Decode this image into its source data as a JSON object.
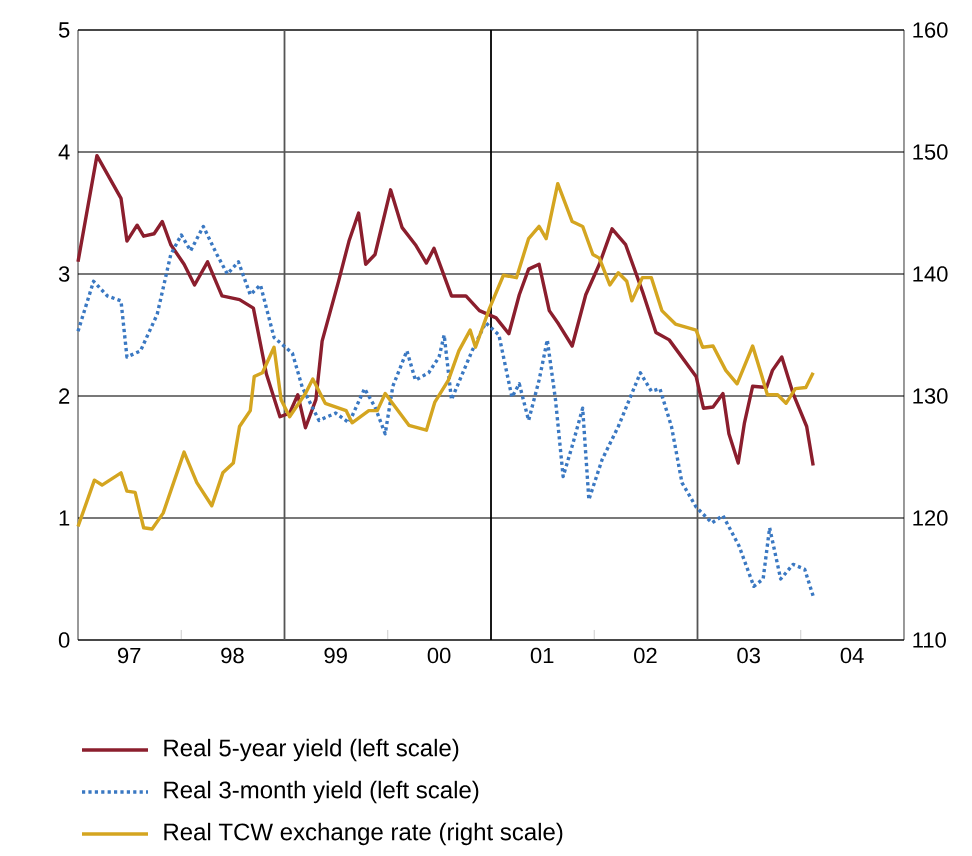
{
  "chart_data": {
    "type": "line",
    "xlim": [
      "1997-01-01",
      "2005-01-01"
    ],
    "ylim": [
      0,
      5
    ],
    "yticks": [
      0,
      1,
      2,
      3,
      4,
      5
    ],
    "y2lim": [
      110,
      160
    ],
    "y2ticks": [
      110,
      120,
      130,
      140,
      150,
      160
    ],
    "xticks": [
      {
        "value": "1997-07-01",
        "label": "97"
      },
      {
        "value": "1998-07-01",
        "label": "98"
      },
      {
        "value": "1999-07-01",
        "label": "99"
      },
      {
        "value": "2000-07-01",
        "label": "00"
      },
      {
        "value": "2001-07-01",
        "label": "01"
      },
      {
        "value": "2002-07-01",
        "label": "02"
      },
      {
        "value": "2003-07-01",
        "label": "03"
      },
      {
        "value": "2004-07-01",
        "label": "04"
      },
      {
        "value": "1998-01-01",
        "label": null
      },
      {
        "value": "2000-01-01",
        "label": null
      },
      {
        "value": "2002-01-01",
        "label": null
      },
      {
        "value": "2004-01-01",
        "label": null
      }
    ],
    "grid": "y",
    "legend": "bottom",
    "line_style": "solid",
    "ref_lines": [
      {
        "axis": "x",
        "value": "1999-01-01",
        "color": "#555555"
      },
      {
        "axis": "x",
        "value": "2001-01-01",
        "color": "#000000"
      },
      {
        "axis": "x",
        "value": "2003-01-01",
        "color": "#555555"
      }
    ],
    "series": [
      {
        "name": "Real 5-year yield (left scale)",
        "color": "#8b1e2d",
        "x": [
          "1997-01-01",
          "1997-03-09",
          "1997-06-02",
          "1997-06-23",
          "1997-07-29",
          "1997-08-21",
          "1997-09-27",
          "1997-10-26",
          "1997-11-25",
          "1998-01-11",
          "1998-02-17",
          "1998-04-04",
          "1998-05-25",
          "1998-07-26",
          "1998-09-13",
          "1998-10-29",
          "1998-12-16",
          "1999-01-19",
          "1999-02-17",
          "1999-03-16",
          "1999-04-22",
          "1999-05-14",
          "1999-07-11",
          "1999-08-17",
          "1999-09-20",
          "1999-10-15",
          "1999-11-17",
          "2000-01-11",
          "2000-02-21",
          "2000-04-08",
          "2000-05-17",
          "2000-06-13",
          "2000-08-14",
          "2000-10-04",
          "2000-11-21",
          "2001-01-19",
          "2001-03-05",
          "2001-04-11",
          "2001-05-14",
          "2001-06-20",
          "2001-07-26",
          "2001-08-28",
          "2001-10-15",
          "2001-12-02",
          "2002-01-19",
          "2002-03-05",
          "2002-04-22",
          "2002-06-20",
          "2002-08-07",
          "2002-09-23",
          "2002-12-27",
          "2003-01-22",
          "2003-02-25",
          "2003-04-01",
          "2003-04-22",
          "2003-05-25",
          "2003-06-16",
          "2003-07-15",
          "2003-09-02",
          "2003-09-23",
          "2003-10-26",
          "2003-12-05",
          "2004-01-22",
          "2004-02-14"
        ],
        "values": [
          3.1,
          3.97,
          3.62,
          3.27,
          3.4,
          3.31,
          3.33,
          3.43,
          3.24,
          3.08,
          2.91,
          3.1,
          2.82,
          2.79,
          2.72,
          2.18,
          1.83,
          1.86,
          2.01,
          1.74,
          1.97,
          2.45,
          2.94,
          3.27,
          3.5,
          3.08,
          3.16,
          3.69,
          3.38,
          3.24,
          3.09,
          3.21,
          2.82,
          2.82,
          2.7,
          2.64,
          2.51,
          2.83,
          3.04,
          3.08,
          2.7,
          2.59,
          2.41,
          2.83,
          3.08,
          3.37,
          3.24,
          2.86,
          2.52,
          2.46,
          2.16,
          1.9,
          1.91,
          2.02,
          1.69,
          1.45,
          1.78,
          2.08,
          2.07,
          2.21,
          2.32,
          2.02,
          1.75,
          1.43
        ]
      },
      {
        "name": "Real 3-month yield (left scale)",
        "color": "#3a78c2",
        "line_style": "dotted",
        "x": [
          "1997-01-01",
          "1997-02-25",
          "1997-04-15",
          "1997-06-02",
          "1997-06-23",
          "1997-08-10",
          "1997-10-08",
          "1997-11-25",
          "1998-01-01",
          "1998-02-03",
          "1998-03-20",
          "1998-05-07",
          "1998-06-13",
          "1998-07-22",
          "1998-09-02",
          "1998-10-08",
          "1998-11-25",
          "1999-01-29",
          "1999-03-05",
          "1999-05-03",
          "1999-07-01",
          "1999-08-17",
          "1999-10-11",
          "1999-11-17",
          "1999-12-23",
          "2000-01-19",
          "2000-03-09",
          "2000-04-08",
          "2000-05-25",
          "2000-07-01",
          "2000-07-19",
          "2000-08-14",
          "2000-09-23",
          "2000-10-26",
          "2000-12-13",
          "2001-01-29",
          "2001-03-16",
          "2001-04-11",
          "2001-05-14",
          "2001-06-20",
          "2001-07-19",
          "2001-08-17",
          "2001-09-13",
          "2001-10-15",
          "2001-11-21",
          "2001-12-13",
          "2002-01-29",
          "2002-03-27",
          "2002-06-13",
          "2002-07-22",
          "2002-08-21",
          "2002-10-01",
          "2002-11-07",
          "2002-12-27",
          "2003-02-21",
          "2003-04-01",
          "2003-05-28",
          "2003-07-19",
          "2003-08-21",
          "2003-09-13",
          "2003-10-22",
          "2003-12-05",
          "2004-01-15",
          "2004-02-14"
        ],
        "values": [
          2.53,
          2.94,
          2.82,
          2.78,
          2.32,
          2.37,
          2.67,
          3.16,
          3.32,
          3.19,
          3.39,
          3.16,
          3.0,
          3.1,
          2.83,
          2.91,
          2.48,
          2.35,
          2.07,
          1.8,
          1.86,
          1.78,
          2.06,
          1.91,
          1.69,
          2.08,
          2.37,
          2.13,
          2.19,
          2.32,
          2.5,
          1.97,
          2.19,
          2.37,
          2.6,
          2.5,
          1.99,
          2.1,
          1.8,
          2.13,
          2.46,
          1.97,
          1.34,
          1.59,
          1.9,
          1.15,
          1.48,
          1.75,
          2.19,
          2.04,
          2.06,
          1.75,
          1.29,
          1.09,
          0.96,
          1.02,
          0.77,
          0.44,
          0.5,
          0.92,
          0.5,
          0.62,
          0.58,
          0.36
        ]
      },
      {
        "name": "Real TCW exchange rate (right scale)",
        "color": "#d4a520",
        "axis": "y2",
        "x": [
          "1997-01-01",
          "1997-02-28",
          "1997-03-27",
          "1997-06-02",
          "1997-06-23",
          "1997-07-22",
          "1997-08-21",
          "1997-09-20",
          "1997-10-29",
          "1998-01-11",
          "1998-02-25",
          "1998-04-19",
          "1998-05-28",
          "1998-07-04",
          "1998-07-26",
          "1998-09-02",
          "1998-09-16",
          "1998-10-15",
          "1998-11-25",
          "1998-12-20",
          "1999-01-19",
          "1999-03-16",
          "1999-04-11",
          "1999-05-25",
          "1999-08-07",
          "1999-08-28",
          "1999-10-26",
          "1999-11-25",
          "1999-12-23",
          "2000-03-16",
          "2000-05-17",
          "2000-06-16",
          "2000-08-03",
          "2000-09-09",
          "2000-10-19",
          "2000-11-07",
          "2000-12-27",
          "2001-02-14",
          "2001-04-01",
          "2001-05-14",
          "2001-06-20",
          "2001-07-15",
          "2001-08-25",
          "2001-10-15",
          "2001-11-21",
          "2001-12-27",
          "2002-01-19",
          "2002-02-25",
          "2002-03-27",
          "2002-04-26",
          "2002-05-14",
          "2002-06-20",
          "2002-07-22",
          "2002-08-28",
          "2002-10-15",
          "2002-12-27",
          "2003-01-19",
          "2003-02-25",
          "2003-04-11",
          "2003-05-21",
          "2003-07-15",
          "2003-08-17",
          "2003-09-05",
          "2003-10-11",
          "2003-11-10",
          "2003-12-13",
          "2004-01-19",
          "2004-02-14"
        ],
        "values": [
          119.3,
          123.1,
          122.7,
          123.7,
          122.2,
          122.1,
          119.2,
          119.1,
          120.4,
          125.4,
          122.9,
          121.0,
          123.7,
          124.5,
          127.5,
          128.8,
          131.6,
          131.9,
          134.0,
          129.7,
          128.3,
          130.2,
          131.4,
          129.4,
          128.8,
          127.8,
          128.8,
          128.8,
          130.2,
          127.6,
          127.2,
          129.5,
          131.3,
          133.7,
          135.4,
          134.0,
          137.2,
          139.9,
          139.7,
          142.9,
          143.9,
          142.9,
          147.4,
          144.3,
          143.9,
          141.6,
          141.3,
          139.1,
          140.1,
          139.4,
          137.8,
          139.7,
          139.7,
          137.0,
          135.9,
          135.4,
          134.0,
          134.1,
          132.1,
          131.0,
          134.1,
          131.6,
          130.1,
          130.1,
          129.4,
          130.6,
          130.7,
          131.9
        ]
      }
    ]
  }
}
